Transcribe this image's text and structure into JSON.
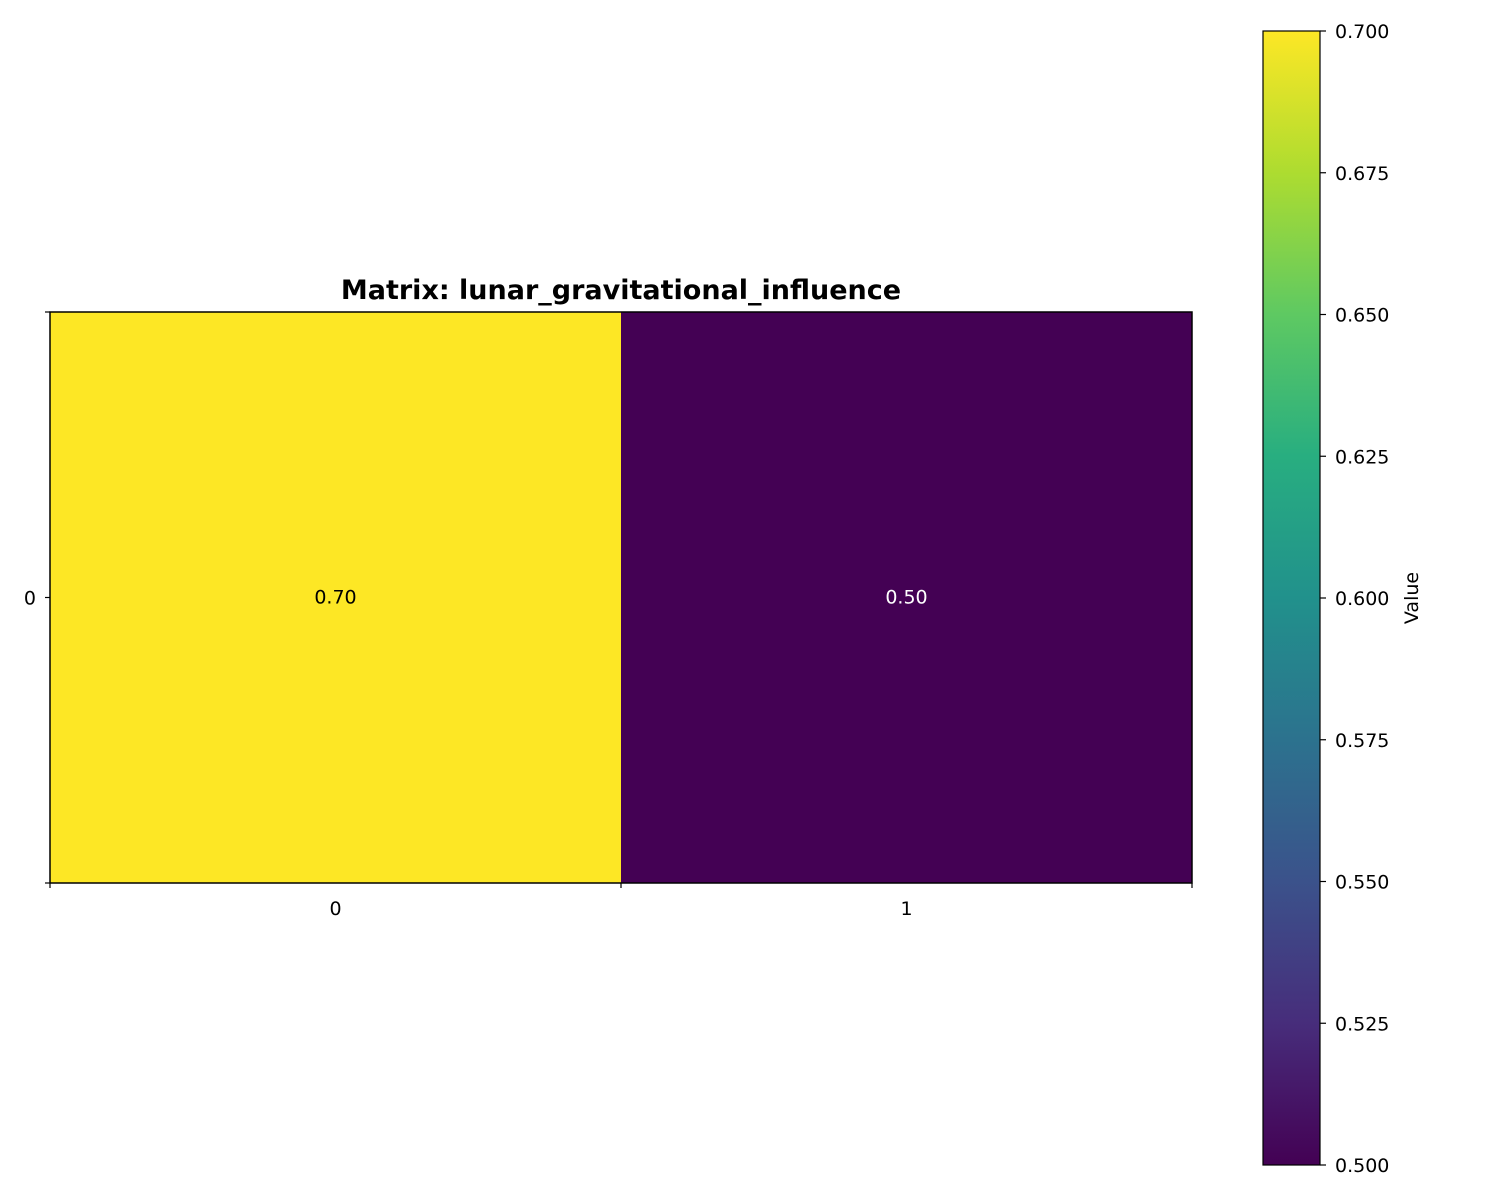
{
  "chart_data": {
    "type": "heatmap",
    "title": "Matrix: lunar_gravitational_influence",
    "rows": [
      "0"
    ],
    "columns": [
      "0",
      "1"
    ],
    "values": [
      [
        0.7,
        0.5
      ]
    ],
    "cell_labels": [
      [
        "0.70",
        "0.50"
      ]
    ],
    "colormap": "viridis",
    "colorbar": {
      "label": "Value",
      "range": [
        0.5,
        0.7
      ],
      "ticks": [
        "0.500",
        "0.525",
        "0.550",
        "0.575",
        "0.600",
        "0.625",
        "0.650",
        "0.675",
        "0.700"
      ],
      "placement": "right"
    },
    "grid": false,
    "colors": {
      "high": "#fde725",
      "low": "#440154",
      "label_on_dark": "#ffffff",
      "label_on_light": "#000000"
    }
  }
}
